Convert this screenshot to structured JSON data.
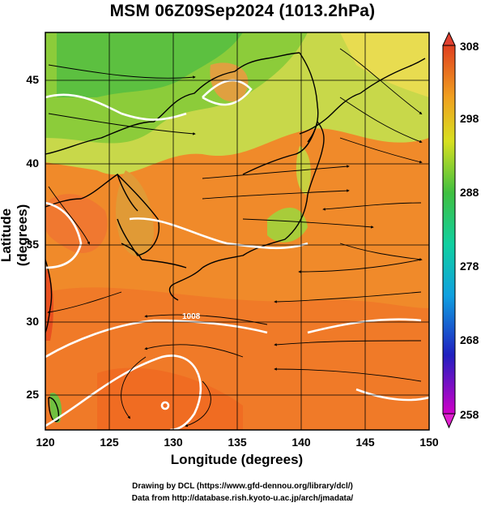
{
  "title": "MSM 06Z09Sep2024 (1013.2hPa)",
  "axes": {
    "x_label": "Longitude (degrees)",
    "y_label": "Latitude  (degrees)",
    "x_range": [
      120,
      150
    ],
    "y_range": [
      22.4,
      47.6
    ],
    "x_ticks": [
      "120",
      "125",
      "130",
      "135",
      "140",
      "145",
      "150"
    ],
    "y_ticks": [
      "25",
      "30",
      "35",
      "40",
      "45"
    ]
  },
  "colorbar": {
    "min": 258,
    "max": 308,
    "ticks": [
      "308",
      "298",
      "288",
      "278",
      "268",
      "258"
    ]
  },
  "contour_labels": [
    "1008"
  ],
  "credits": {
    "line1": "Drawing by DCL (https://www.gfd-dennou.org/library/dcl/)",
    "line2": "Data from http://database.rish.kyoto-u.ac.jp/arch/jmadata/"
  }
}
